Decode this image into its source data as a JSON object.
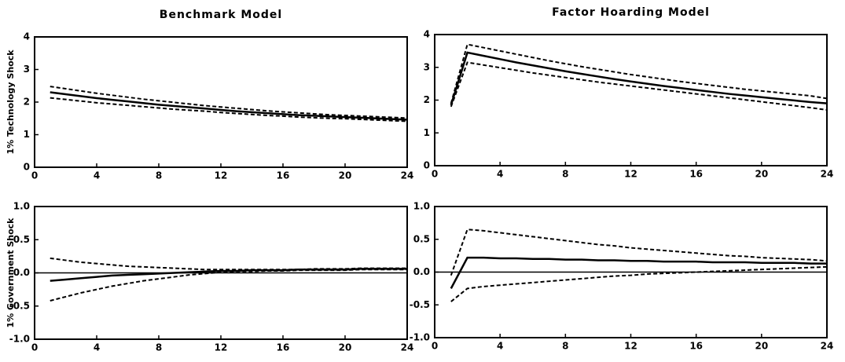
{
  "chart_data": [
    {
      "type": "line",
      "title": "Benchmark Model",
      "y_label": "1% Technology Shock",
      "x": [
        1,
        2,
        3,
        4,
        5,
        6,
        7,
        8,
        9,
        10,
        11,
        12,
        13,
        14,
        15,
        16,
        17,
        18,
        19,
        20,
        21,
        22,
        23,
        24
      ],
      "xlim": [
        0,
        24
      ],
      "xticks": [
        0,
        4,
        8,
        12,
        16,
        20,
        24
      ],
      "ylim": [
        0,
        4
      ],
      "yticks": [
        0,
        1,
        2,
        3,
        4
      ],
      "series": [
        {
          "color": "#000000",
          "dash": false,
          "values": [
            2.3,
            2.24,
            2.18,
            2.12,
            2.07,
            2.02,
            1.97,
            1.92,
            1.88,
            1.84,
            1.8,
            1.76,
            1.72,
            1.69,
            1.66,
            1.63,
            1.6,
            1.58,
            1.56,
            1.54,
            1.52,
            1.5,
            1.48,
            1.46
          ]
        },
        {
          "color": "#000000",
          "dash": true,
          "values": [
            2.48,
            2.41,
            2.34,
            2.27,
            2.21,
            2.15,
            2.09,
            2.04,
            1.99,
            1.94,
            1.89,
            1.85,
            1.81,
            1.77,
            1.73,
            1.7,
            1.67,
            1.64,
            1.61,
            1.59,
            1.57,
            1.55,
            1.53,
            1.51
          ]
        },
        {
          "color": "#000000",
          "dash": true,
          "values": [
            2.13,
            2.08,
            2.03,
            1.98,
            1.94,
            1.9,
            1.86,
            1.82,
            1.78,
            1.75,
            1.72,
            1.68,
            1.65,
            1.62,
            1.59,
            1.57,
            1.54,
            1.52,
            1.5,
            1.49,
            1.47,
            1.45,
            1.43,
            1.41
          ]
        }
      ]
    },
    {
      "type": "line",
      "title": "Factor Hoarding Model",
      "x": [
        1,
        2,
        3,
        4,
        5,
        6,
        7,
        8,
        9,
        10,
        11,
        12,
        13,
        14,
        15,
        16,
        17,
        18,
        19,
        20,
        21,
        22,
        23,
        24
      ],
      "xlim": [
        0,
        24
      ],
      "xticks": [
        0,
        4,
        8,
        12,
        16,
        20,
        24
      ],
      "ylim": [
        0,
        4
      ],
      "yticks": [
        0,
        1,
        2,
        3,
        4
      ],
      "series": [
        {
          "color": "#000000",
          "dash": false,
          "values": [
            1.85,
            3.45,
            3.35,
            3.25,
            3.15,
            3.06,
            2.97,
            2.88,
            2.8,
            2.72,
            2.64,
            2.57,
            2.5,
            2.43,
            2.37,
            2.31,
            2.25,
            2.19,
            2.14,
            2.09,
            2.04,
            1.99,
            1.94,
            1.9
          ]
        },
        {
          "color": "#000000",
          "dash": true,
          "values": [
            1.9,
            3.7,
            3.6,
            3.5,
            3.4,
            3.3,
            3.2,
            3.11,
            3.02,
            2.94,
            2.86,
            2.78,
            2.71,
            2.64,
            2.57,
            2.51,
            2.45,
            2.39,
            2.33,
            2.28,
            2.23,
            2.18,
            2.13,
            2.05
          ]
        },
        {
          "color": "#000000",
          "dash": true,
          "values": [
            1.8,
            3.15,
            3.07,
            2.99,
            2.91,
            2.83,
            2.76,
            2.69,
            2.62,
            2.55,
            2.49,
            2.43,
            2.37,
            2.31,
            2.25,
            2.19,
            2.13,
            2.07,
            2.01,
            1.95,
            1.89,
            1.83,
            1.77,
            1.7
          ]
        }
      ]
    },
    {
      "type": "line",
      "y_label": "1% Government Shock",
      "zero_line": true,
      "x": [
        1,
        2,
        3,
        4,
        5,
        6,
        7,
        8,
        9,
        10,
        11,
        12,
        13,
        14,
        15,
        16,
        17,
        18,
        19,
        20,
        21,
        22,
        23,
        24
      ],
      "xlim": [
        0,
        24
      ],
      "xticks": [
        0,
        4,
        8,
        12,
        16,
        20,
        24
      ],
      "ylim": [
        -1,
        1
      ],
      "yticks": [
        {
          "value": -1,
          "label": "-1.0"
        },
        {
          "value": -0.5,
          "label": "-0.5"
        },
        {
          "value": 0,
          "label": "0.0"
        },
        {
          "value": 0.5,
          "label": "0.5"
        },
        {
          "value": 1,
          "label": "1.0"
        }
      ],
      "series": [
        {
          "color": "#000000",
          "dash": false,
          "values": [
            -0.12,
            -0.1,
            -0.08,
            -0.06,
            -0.04,
            -0.03,
            -0.02,
            -0.01,
            0.0,
            0.01,
            0.02,
            0.03,
            0.03,
            0.04,
            0.04,
            0.04,
            0.05,
            0.05,
            0.05,
            0.05,
            0.06,
            0.06,
            0.06,
            0.06
          ]
        },
        {
          "color": "#000000",
          "dash": true,
          "values": [
            0.22,
            0.19,
            0.16,
            0.14,
            0.12,
            0.1,
            0.09,
            0.08,
            0.07,
            0.06,
            0.05,
            0.05,
            0.05,
            0.05,
            0.05,
            0.05,
            0.05,
            0.06,
            0.06,
            0.06,
            0.07,
            0.07,
            0.07,
            0.07
          ]
        },
        {
          "color": "#000000",
          "dash": true,
          "values": [
            -0.42,
            -0.36,
            -0.3,
            -0.25,
            -0.2,
            -0.16,
            -0.12,
            -0.09,
            -0.06,
            -0.03,
            -0.01,
            0.01,
            0.02,
            0.02,
            0.03,
            0.03,
            0.04,
            0.04,
            0.04,
            0.04,
            0.05,
            0.05,
            0.05,
            0.05
          ]
        }
      ]
    },
    {
      "type": "line",
      "zero_line": true,
      "x": [
        1,
        2,
        3,
        4,
        5,
        6,
        7,
        8,
        9,
        10,
        11,
        12,
        13,
        14,
        15,
        16,
        17,
        18,
        19,
        20,
        21,
        22,
        23,
        24
      ],
      "xlim": [
        0,
        24
      ],
      "xticks": [
        0,
        4,
        8,
        12,
        16,
        20,
        24
      ],
      "ylim": [
        -1,
        1
      ],
      "yticks": [
        {
          "value": -1,
          "label": "-1.0"
        },
        {
          "value": -0.5,
          "label": "-0.5"
        },
        {
          "value": 0,
          "label": "0.0"
        },
        {
          "value": 0.5,
          "label": "0.5"
        },
        {
          "value": 1,
          "label": "1.0"
        }
      ],
      "series": [
        {
          "color": "#000000",
          "dash": false,
          "values": [
            -0.25,
            0.22,
            0.22,
            0.21,
            0.21,
            0.2,
            0.2,
            0.19,
            0.19,
            0.18,
            0.18,
            0.17,
            0.17,
            0.16,
            0.16,
            0.16,
            0.15,
            0.15,
            0.15,
            0.14,
            0.14,
            0.14,
            0.13,
            0.13
          ]
        },
        {
          "color": "#000000",
          "dash": true,
          "values": [
            -0.05,
            0.65,
            0.63,
            0.6,
            0.57,
            0.54,
            0.51,
            0.48,
            0.45,
            0.42,
            0.4,
            0.37,
            0.35,
            0.33,
            0.31,
            0.29,
            0.27,
            0.25,
            0.24,
            0.22,
            0.21,
            0.2,
            0.19,
            0.17
          ]
        },
        {
          "color": "#000000",
          "dash": true,
          "values": [
            -0.45,
            -0.25,
            -0.22,
            -0.2,
            -0.18,
            -0.16,
            -0.14,
            -0.12,
            -0.1,
            -0.08,
            -0.06,
            -0.05,
            -0.03,
            -0.02,
            -0.01,
            0.0,
            0.01,
            0.02,
            0.03,
            0.04,
            0.05,
            0.06,
            0.07,
            0.08
          ]
        }
      ]
    }
  ]
}
